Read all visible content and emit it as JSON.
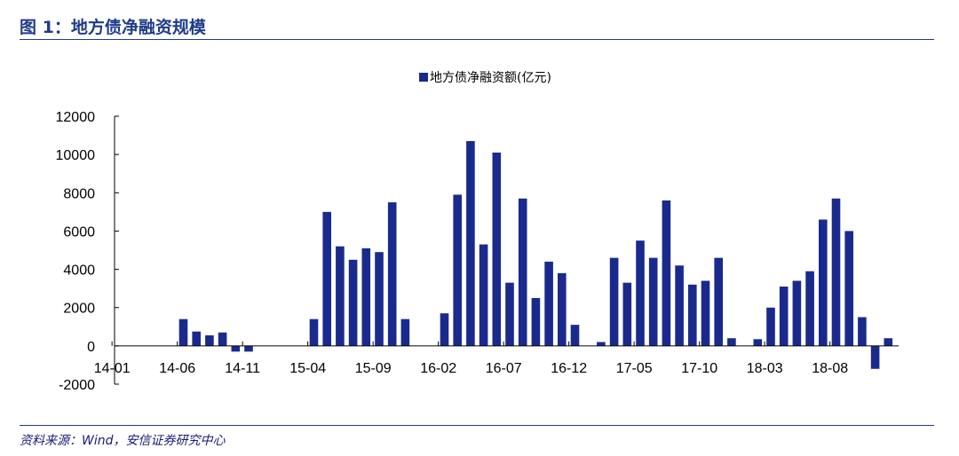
{
  "figure": {
    "title": "图 1：地方债净融资规模",
    "source": "资料来源：Wind，安信证券研究中心"
  },
  "colors": {
    "bar": "#1a2a8c",
    "accent": "#1f3c88",
    "axis": "#000000"
  },
  "chart_data": {
    "type": "bar",
    "legend": "地方债净融资额(亿元)",
    "legend_placement": "top-center",
    "grid": false,
    "ylim": [
      -2000,
      12000
    ],
    "yticks": [
      "12000",
      "10000",
      "8000",
      "6000",
      "4000",
      "2000",
      "0",
      "-2000"
    ],
    "ytick_values": [
      12000,
      10000,
      8000,
      6000,
      4000,
      2000,
      0,
      -2000
    ],
    "xtick_labels": [
      "14-01",
      "14-06",
      "14-11",
      "15-04",
      "15-09",
      "16-02",
      "16-07",
      "16-12",
      "17-05",
      "17-10",
      "18-03",
      "18-08"
    ],
    "categories": [
      "14-01",
      "14-02",
      "14-03",
      "14-04",
      "14-05",
      "14-06",
      "14-07",
      "14-08",
      "14-09",
      "14-10",
      "14-11",
      "14-12",
      "15-01",
      "15-02",
      "15-03",
      "15-04",
      "15-05",
      "15-06",
      "15-07",
      "15-08",
      "15-09",
      "15-10",
      "15-11",
      "15-12",
      "16-01",
      "16-02",
      "16-03",
      "16-04",
      "16-05",
      "16-06",
      "16-07",
      "16-08",
      "16-09",
      "16-10",
      "16-11",
      "16-12",
      "17-01",
      "17-02",
      "17-03",
      "17-04",
      "17-05",
      "17-06",
      "17-07",
      "17-08",
      "17-09",
      "17-10",
      "17-11",
      "17-12",
      "18-01",
      "18-02",
      "18-03",
      "18-04",
      "18-05",
      "18-06",
      "18-07",
      "18-08",
      "18-09",
      "18-10",
      "18-11",
      "18-12",
      "19-01"
    ],
    "values": [
      0,
      0,
      0,
      0,
      0,
      1400,
      750,
      550,
      700,
      -300,
      -300,
      0,
      0,
      0,
      0,
      1400,
      7000,
      5200,
      4500,
      5100,
      4900,
      7500,
      1400,
      0,
      0,
      1700,
      7900,
      10700,
      5300,
      10100,
      3300,
      7700,
      2500,
      4400,
      3800,
      1100,
      0,
      200,
      4600,
      3300,
      5500,
      4600,
      7600,
      4200,
      3200,
      3400,
      4600,
      400,
      0,
      350,
      2000,
      3100,
      3400,
      3900,
      6600,
      7700,
      6000,
      1500,
      -1200,
      400,
      0
    ]
  }
}
